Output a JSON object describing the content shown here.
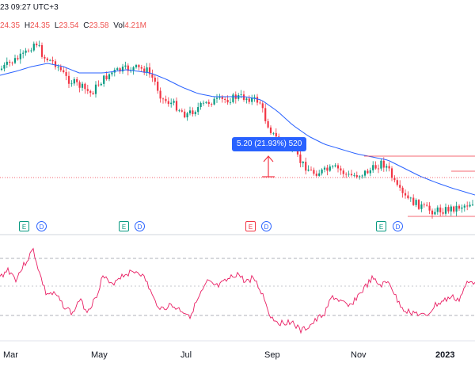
{
  "header": {
    "datetime": "23 09:27 UTC+3"
  },
  "ohlc": {
    "o_label": "",
    "o": "24.35",
    "h_label": "H",
    "h": "24.35",
    "l_label": "L",
    "l": "23.54",
    "c_label": "C",
    "c": "23.58",
    "vol_label": "Vol",
    "vol": "4.21M"
  },
  "measure": {
    "label": "5.20 (21.93%) 520"
  },
  "events": [
    {
      "type": "E",
      "name": "earnings-badge",
      "neg": false
    },
    {
      "type": "D",
      "name": "dividend-badge"
    },
    {
      "type": "E",
      "name": "earnings-badge",
      "neg": false
    },
    {
      "type": "D",
      "name": "dividend-badge"
    },
    {
      "type": "E",
      "name": "earnings-badge",
      "neg": true
    },
    {
      "type": "D",
      "name": "dividend-badge"
    },
    {
      "type": "E",
      "name": "earnings-badge",
      "neg": false
    },
    {
      "type": "D",
      "name": "dividend-badge"
    }
  ],
  "x_axis": {
    "labels": [
      "Mar",
      "May",
      "Jul",
      "Sep",
      "Nov",
      "2023"
    ]
  },
  "colors": {
    "up": "#089981",
    "down": "#f23645",
    "ma": "#2962ff",
    "osc": "#e91e63"
  }
}
